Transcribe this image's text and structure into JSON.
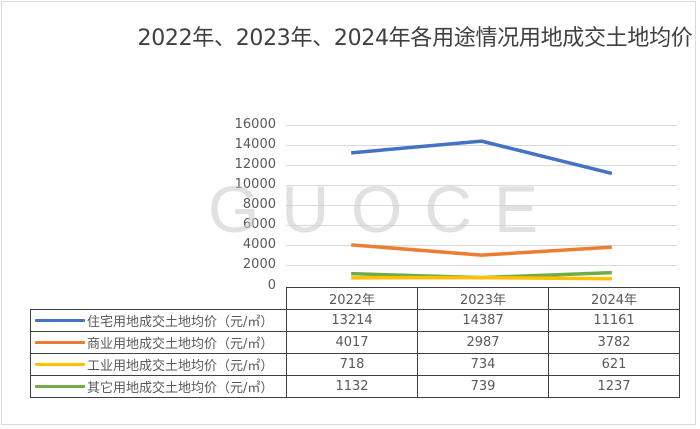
{
  "title": "2022年、2023年、2024年各用途情况用地成交土地均价",
  "watermark": "GUOCE",
  "yaxis": {
    "ticks": [
      "16000",
      "14000",
      "12000",
      "10000",
      "8000",
      "6000",
      "4000",
      "2000",
      "0"
    ]
  },
  "table": {
    "headers": [
      "2022年",
      "2023年",
      "2024年"
    ],
    "rows": [
      {
        "label": "住宅用地成交土地均价（元/㎡）",
        "color": "#4472C4",
        "values": [
          "13214",
          "14387",
          "11161"
        ]
      },
      {
        "label": "商业用地成交土地均价（元/㎡）",
        "color": "#ED7D31",
        "values": [
          "4017",
          "2987",
          "3782"
        ]
      },
      {
        "label": "工业用地成交土地均价（元/㎡）",
        "color": "#FFC000",
        "values": [
          "718",
          "734",
          "621"
        ]
      },
      {
        "label": "其它用地成交土地均价（元/㎡）",
        "color": "#70AD47",
        "values": [
          "1132",
          "739",
          "1237"
        ]
      }
    ]
  },
  "chart_data": {
    "type": "line",
    "title": "2022年、2023年、2024年各用途情况用地成交土地均价",
    "categories": [
      "2022年",
      "2023年",
      "2024年"
    ],
    "series": [
      {
        "name": "住宅用地成交土地均价（元/㎡）",
        "color": "#4472C4",
        "values": [
          13214,
          14387,
          11161
        ]
      },
      {
        "name": "商业用地成交土地均价（元/㎡）",
        "color": "#ED7D31",
        "values": [
          4017,
          2987,
          3782
        ]
      },
      {
        "name": "工业用地成交土地均价（元/㎡）",
        "color": "#FFC000",
        "values": [
          718,
          734,
          621
        ]
      },
      {
        "name": "其它用地成交土地均价（元/㎡）",
        "color": "#70AD47",
        "values": [
          1132,
          739,
          1237
        ]
      }
    ],
    "xlabel": "",
    "ylabel": "",
    "ylim": [
      0,
      16000
    ],
    "ytick_step": 2000,
    "grid": true,
    "legend_position": "data-table"
  }
}
